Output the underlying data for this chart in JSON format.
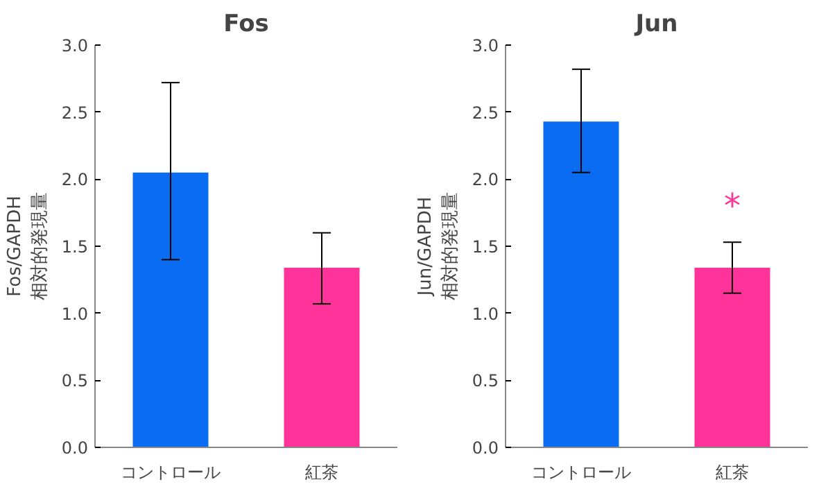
{
  "chart_data": [
    {
      "type": "bar",
      "title": "Fos",
      "ylabel": "Fos/GAPDH\n相対的発現量",
      "categories": [
        "コントロール",
        "紅茶"
      ],
      "values": [
        2.05,
        1.34
      ],
      "colors": [
        "#0a6cf0",
        "#ff3399"
      ],
      "errors": [
        [
          1.4,
          2.72
        ],
        [
          1.07,
          1.6
        ]
      ],
      "ylim": [
        0,
        3
      ],
      "yticks": [
        {
          "value": 0,
          "label": "0.0"
        },
        {
          "value": 0.5,
          "label": "0.5"
        },
        {
          "value": 1,
          "label": "1.0"
        },
        {
          "value": 1.5,
          "label": "1.5"
        },
        {
          "value": 2,
          "label": "2.0"
        },
        {
          "value": 2.5,
          "label": "2.5"
        },
        {
          "value": 3,
          "label": "3.0"
        }
      ],
      "grid": false
    },
    {
      "type": "bar",
      "title": "Jun",
      "ylabel": "Jun/GAPDH\n相対的発現量",
      "categories": [
        "コントロール",
        "紅茶"
      ],
      "values": [
        2.43,
        1.34
      ],
      "colors": [
        "#0a6cf0",
        "#ff3399"
      ],
      "errors": [
        [
          2.05,
          2.82
        ],
        [
          1.15,
          1.53
        ]
      ],
      "ylim": [
        0,
        3
      ],
      "yticks": [
        {
          "value": 0,
          "label": "0.0"
        },
        {
          "value": 0.5,
          "label": "0.5"
        },
        {
          "value": 1,
          "label": "1.0"
        },
        {
          "value": 1.5,
          "label": "1.5"
        },
        {
          "value": 2,
          "label": "2.0"
        },
        {
          "value": 2.5,
          "label": "2.5"
        },
        {
          "value": 3,
          "label": "3.0"
        }
      ],
      "grid": false,
      "annotations": [
        "*"
      ]
    }
  ]
}
